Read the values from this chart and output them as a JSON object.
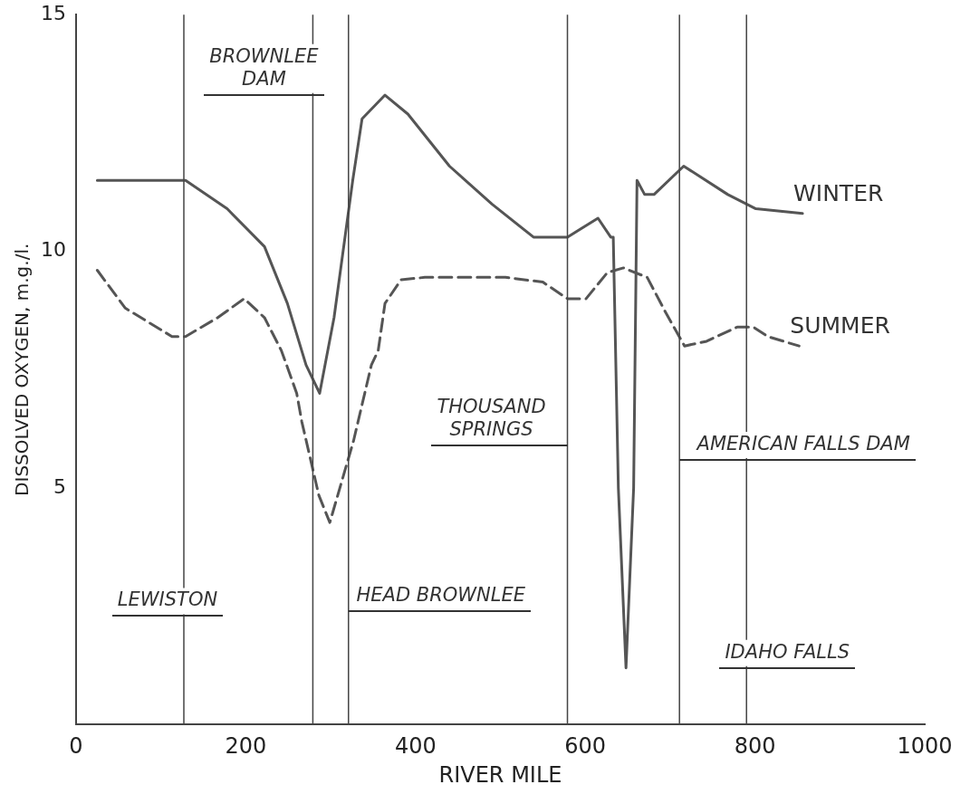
{
  "chart_data": {
    "type": "line",
    "xlabel": "RIVER MILE",
    "ylabel": "DISSOLVED OXYGEN, m.g./l.",
    "xlim": [
      0,
      1000
    ],
    "xticks": [
      0,
      200,
      400,
      600,
      800,
      1000
    ],
    "ylim": [
      0,
      15
    ],
    "yticks": [
      5,
      10,
      15
    ],
    "series": [
      {
        "name": "WINTER",
        "color": "#555555",
        "line_style": "solid",
        "x": [
          25,
          129,
          178,
          222,
          249,
          271,
          287,
          304,
          326,
          337,
          364,
          391,
          440,
          490,
          539,
          579,
          615,
          630,
          633,
          639,
          648,
          657,
          661,
          670,
          681,
          716,
          768,
          801,
          856
        ],
        "values": [
          11.5,
          11.5,
          10.9,
          10.1,
          8.9,
          7.6,
          7.0,
          8.6,
          11.5,
          12.8,
          13.3,
          12.9,
          11.8,
          11.0,
          10.3,
          10.3,
          10.7,
          10.3,
          10.3,
          5.0,
          1.2,
          5.0,
          11.5,
          11.2,
          11.2,
          11.8,
          11.2,
          10.9,
          10.8
        ]
      },
      {
        "name": "SUMMER",
        "color": "#555555",
        "line_style": "dashed",
        "x": [
          25,
          58,
          113,
          129,
          167,
          198,
          222,
          242,
          260,
          266,
          286,
          299,
          327,
          348,
          356,
          364,
          383,
          411,
          506,
          550,
          579,
          601,
          626,
          645,
          673,
          695,
          717,
          743,
          779,
          798,
          815,
          852
        ],
        "values": [
          9.6,
          8.8,
          8.2,
          8.2,
          8.6,
          9.0,
          8.6,
          7.9,
          7.0,
          6.4,
          4.85,
          4.27,
          6.0,
          7.6,
          7.9,
          8.9,
          9.4,
          9.45,
          9.45,
          9.35,
          9.0,
          9.0,
          9.55,
          9.65,
          9.45,
          8.7,
          8.0,
          8.1,
          8.4,
          8.4,
          8.2,
          8.0
        ]
      }
    ],
    "ref_lines": [
      {
        "axis": "x",
        "value": 127,
        "label": "LEWISTON",
        "color": "#444444"
      },
      {
        "axis": "x",
        "value": 279,
        "label": "BROWNLEE DAM",
        "color": "#444444"
      },
      {
        "axis": "x",
        "value": 321,
        "label": "HEAD BROWNLEE",
        "color": "#444444"
      },
      {
        "axis": "x",
        "value": 579,
        "label": "THOUSAND SPRINGS",
        "color": "#444444"
      },
      {
        "axis": "x",
        "value": 711,
        "label": "AMERICAN FALLS DAM",
        "color": "#444444"
      },
      {
        "axis": "x",
        "value": 790,
        "label": "IDAHO FALLS",
        "color": "#444444"
      }
    ]
  }
}
